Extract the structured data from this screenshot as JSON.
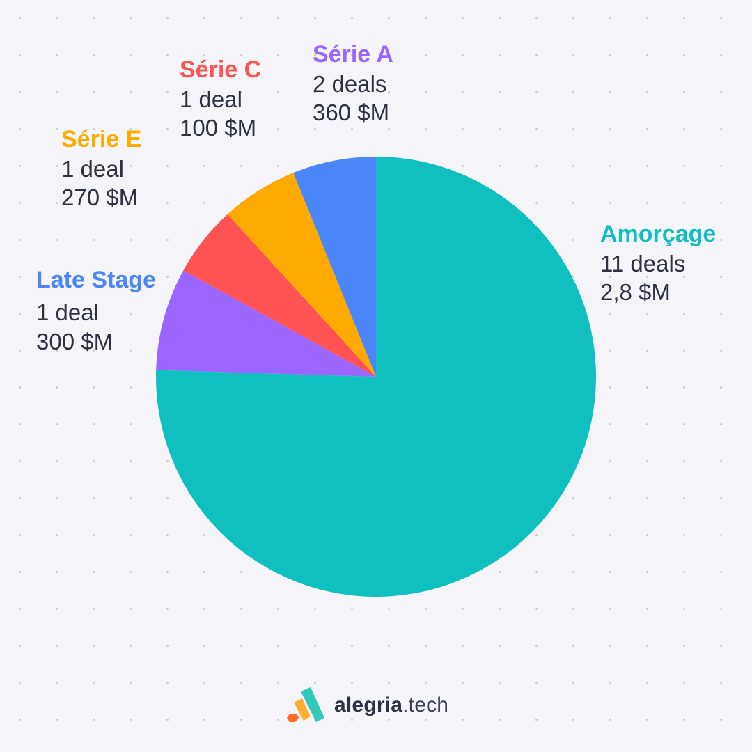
{
  "chart_data": {
    "type": "pie",
    "title": "",
    "series": [
      {
        "name": "Amorçage",
        "deals": 11,
        "deals_label": "11 deals",
        "amount_label": "2,8 $M",
        "share": 0.7273,
        "color": "#10bfbf"
      },
      {
        "name": "Série A",
        "deals": 2,
        "deals_label": "2 deals",
        "amount_label": "360 $M",
        "share": 0.0727,
        "color": "#9b66ff"
      },
      {
        "name": "Série C",
        "deals": 1,
        "deals_label": "1 deal",
        "amount_label": "100 $M",
        "share": 0.05,
        "color": "#ff5252"
      },
      {
        "name": "Série E",
        "deals": 1,
        "deals_label": "1 deal",
        "amount_label": "270 $M",
        "share": 0.0545,
        "color": "#ffaa00"
      },
      {
        "name": "Late Stage",
        "deals": 1,
        "deals_label": "1 deal",
        "amount_label": "300 $M",
        "share": 0.0591,
        "color": "#4a86f7"
      }
    ],
    "start": "top",
    "direction": "clockwise-from-right"
  },
  "brand": {
    "name_strong": "alegria",
    "name_light": ".tech",
    "icon": "alegria-logo-icon"
  }
}
